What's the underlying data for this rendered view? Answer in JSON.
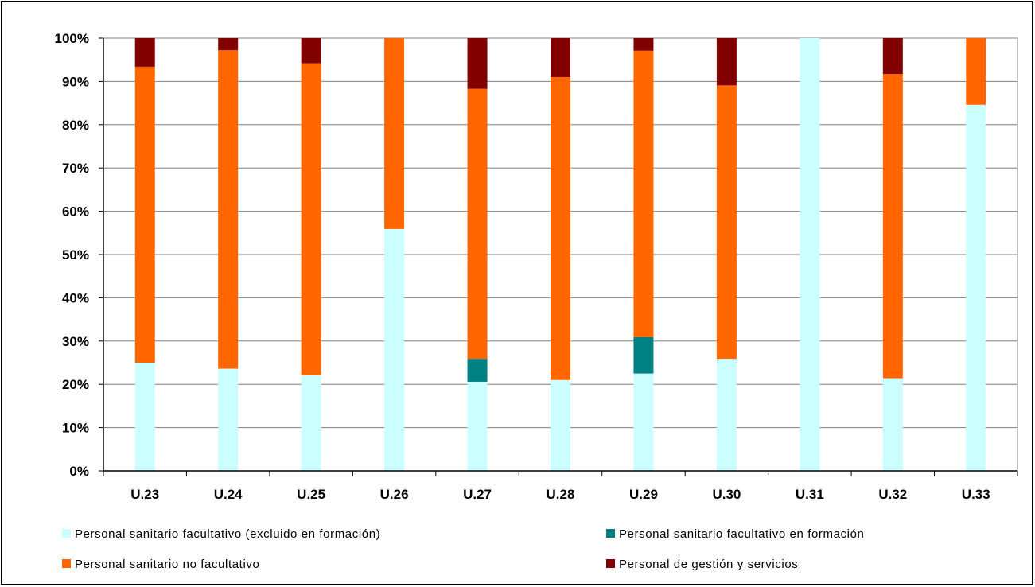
{
  "chart_data": {
    "type": "bar",
    "stacked": true,
    "normalized": true,
    "categories": [
      "U.23",
      "U.24",
      "U.25",
      "U.26",
      "U.27",
      "U.28",
      "U.29",
      "U.30",
      "U.31",
      "U.32",
      "U.33"
    ],
    "y_ticks": [
      "0%",
      "10%",
      "20%",
      "30%",
      "40%",
      "50%",
      "60%",
      "70%",
      "80%",
      "90%",
      "100%"
    ],
    "ylim": [
      0,
      100
    ],
    "grid": true,
    "legend_position": "bottom",
    "title": "",
    "xlabel": "",
    "ylabel": "",
    "series": [
      {
        "name": "Personal sanitario facultativo (excluido en formación)",
        "color": "#ccffff",
        "values": [
          25.0,
          23.6,
          22.1,
          55.9,
          20.6,
          21.0,
          22.5,
          25.9,
          100.0,
          21.4,
          84.6
        ]
      },
      {
        "name": "Personal sanitario facultativo en formación",
        "color": "#008080",
        "values": [
          0,
          0,
          0,
          0,
          5.3,
          0,
          8.4,
          0,
          0,
          0,
          0
        ]
      },
      {
        "name": "Personal sanitario no facultativo",
        "color": "#ff6600",
        "values": [
          68.4,
          73.6,
          72.1,
          44.1,
          62.4,
          70.0,
          66.2,
          63.2,
          0,
          70.3,
          15.4
        ]
      },
      {
        "name": "Personal de gestión y servicios",
        "color": "#800000",
        "values": [
          6.6,
          2.8,
          5.8,
          0,
          11.7,
          9.0,
          2.9,
          10.9,
          0,
          8.3,
          0
        ]
      }
    ]
  }
}
